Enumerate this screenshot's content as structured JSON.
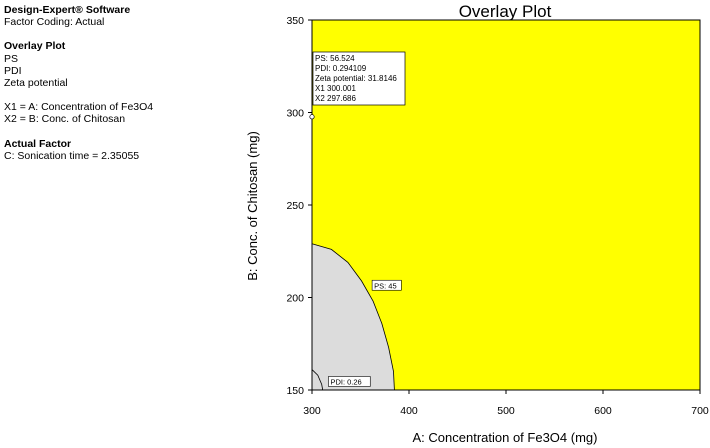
{
  "sidebar": {
    "software": "Design-Expert® Software",
    "coding": "Factor Coding: Actual",
    "section_title": "Overlay Plot",
    "responses": [
      "PS",
      "PDI",
      "Zeta potential"
    ],
    "x1": "X1 = A: Concentration of Fe3O4",
    "x2": "X2 = B: Conc. of Chitosan",
    "actual_factor_title": "Actual Factor",
    "actual_factor": "C: Sonication time = 2.35055"
  },
  "chart_data": {
    "type": "overlay-contour",
    "title": "Overlay Plot",
    "xlabel": "A: Concentration of Fe3O4  (mg)",
    "ylabel": "B: Conc. of Chitosan (mg)",
    "xlim": [
      300,
      700
    ],
    "ylim": [
      150,
      350
    ],
    "xticks": [
      300,
      400,
      500,
      600,
      700
    ],
    "yticks": [
      150,
      200,
      250,
      300,
      350
    ],
    "feasible_color": "#ffff00",
    "infeasible_color": "#dcdcdc",
    "contours": [
      {
        "label": "PS: 45",
        "label_at": [
          363,
          205
        ],
        "points": [
          [
            300,
            229
          ],
          [
            320,
            226
          ],
          [
            337,
            219
          ],
          [
            351,
            209
          ],
          [
            363,
            198
          ],
          [
            372,
            186
          ],
          [
            379,
            173
          ],
          [
            384,
            160
          ],
          [
            385,
            150
          ]
        ]
      },
      {
        "label": "PDI: 0.26",
        "label_at": [
          318,
          153
        ],
        "points": [
          [
            300,
            161
          ],
          [
            306,
            158
          ],
          [
            310,
            153
          ],
          [
            311,
            150
          ]
        ]
      }
    ],
    "flag": {
      "x": 300.001,
      "y": 297.686,
      "lines": [
        "PS:   56.524",
        "PDI:   0.294109",
        "Zeta potential:   31.8146",
        "X1   300.001",
        "X2   297.686"
      ]
    }
  }
}
